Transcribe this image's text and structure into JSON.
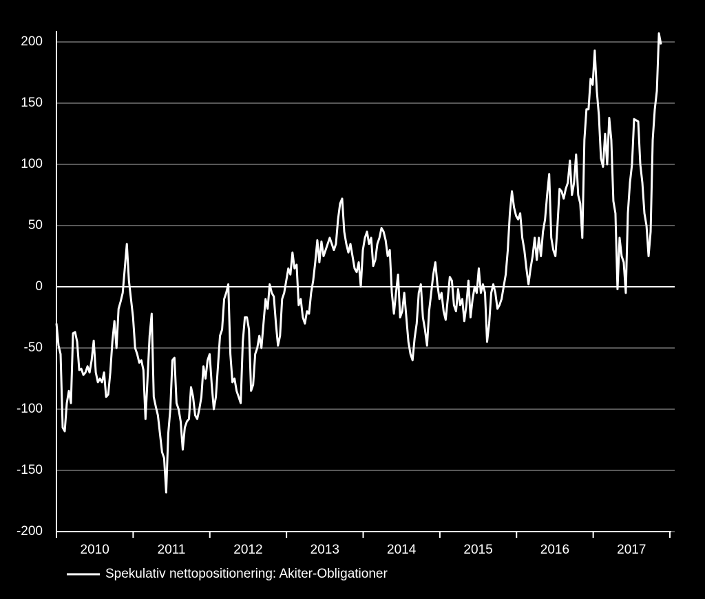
{
  "chart_data": {
    "type": "line",
    "x": [
      2010,
      2010.027,
      2010.054,
      2010.081,
      2010.108,
      2010.135,
      2010.162,
      2010.189,
      2010.216,
      2010.243,
      2010.27,
      2010.297,
      2010.324,
      2010.351,
      2010.378,
      2010.405,
      2010.432,
      2010.459,
      2010.486,
      2010.513,
      2010.54,
      2010.567,
      2010.594,
      2010.621,
      2010.648,
      2010.675,
      2010.702,
      2010.729,
      2010.756,
      2010.783,
      2010.81,
      2010.837,
      2010.864,
      2010.891,
      2010.918,
      2010.945,
      2010.972,
      2010.999,
      2011.026,
      2011.053,
      2011.08,
      2011.107,
      2011.134,
      2011.161,
      2011.188,
      2011.215,
      2011.242,
      2011.269,
      2011.296,
      2011.323,
      2011.35,
      2011.377,
      2011.404,
      2011.431,
      2011.458,
      2011.485,
      2011.512,
      2011.539,
      2011.566,
      2011.593,
      2011.62,
      2011.647,
      2011.674,
      2011.701,
      2011.728,
      2011.755,
      2011.782,
      2011.809,
      2011.836,
      2011.863,
      2011.89,
      2011.917,
      2011.944,
      2011.971,
      2011.998,
      2012.025,
      2012.052,
      2012.079,
      2012.106,
      2012.133,
      2012.16,
      2012.187,
      2012.214,
      2012.241,
      2012.268,
      2012.295,
      2012.322,
      2012.349,
      2012.376,
      2012.403,
      2012.43,
      2012.457,
      2012.484,
      2012.511,
      2012.538,
      2012.565,
      2012.592,
      2012.619,
      2012.646,
      2012.673,
      2012.7,
      2012.727,
      2012.754,
      2012.781,
      2012.808,
      2012.835,
      2012.862,
      2012.889,
      2012.916,
      2012.943,
      2012.97,
      2012.997,
      2013.024,
      2013.051,
      2013.078,
      2013.105,
      2013.132,
      2013.159,
      2013.186,
      2013.213,
      2013.24,
      2013.267,
      2013.294,
      2013.321,
      2013.348,
      2013.375,
      2013.402,
      2013.429,
      2013.456,
      2013.483,
      2013.51,
      2013.537,
      2013.564,
      2013.591,
      2013.618,
      2013.645,
      2013.672,
      2013.699,
      2013.726,
      2013.753,
      2013.78,
      2013.807,
      2013.834,
      2013.861,
      2013.888,
      2013.915,
      2013.942,
      2013.969,
      2013.996,
      2014.023,
      2014.05,
      2014.077,
      2014.104,
      2014.131,
      2014.158,
      2014.185,
      2014.212,
      2014.239,
      2014.266,
      2014.293,
      2014.32,
      2014.347,
      2014.374,
      2014.401,
      2014.428,
      2014.455,
      2014.482,
      2014.509,
      2014.536,
      2014.563,
      2014.59,
      2014.617,
      2014.644,
      2014.671,
      2014.698,
      2014.725,
      2014.752,
      2014.779,
      2014.806,
      2014.833,
      2014.86,
      2014.887,
      2014.914,
      2014.941,
      2014.968,
      2014.995,
      2015.022,
      2015.049,
      2015.076,
      2015.103,
      2015.13,
      2015.157,
      2015.184,
      2015.211,
      2015.238,
      2015.265,
      2015.292,
      2015.319,
      2015.346,
      2015.373,
      2015.4,
      2015.427,
      2015.454,
      2015.481,
      2015.508,
      2015.535,
      2015.562,
      2015.589,
      2015.616,
      2015.643,
      2015.67,
      2015.697,
      2015.724,
      2015.751,
      2015.778,
      2015.805,
      2015.832,
      2015.859,
      2015.886,
      2015.913,
      2015.94,
      2015.967,
      2015.994,
      2016.021,
      2016.048,
      2016.075,
      2016.102,
      2016.129,
      2016.156,
      2016.183,
      2016.21,
      2016.237,
      2016.264,
      2016.291,
      2016.318,
      2016.345,
      2016.372,
      2016.399,
      2016.426,
      2016.453,
      2016.48,
      2016.507,
      2016.534,
      2016.561,
      2016.588,
      2016.615,
      2016.642,
      2016.669,
      2016.696,
      2016.723,
      2016.75,
      2016.777,
      2016.804,
      2016.831,
      2016.858,
      2016.885,
      2016.912,
      2016.939,
      2016.966,
      2016.993,
      2017.02,
      2017.047,
      2017.074,
      2017.101,
      2017.128,
      2017.155,
      2017.182,
      2017.209,
      2017.236,
      2017.263,
      2017.29,
      2017.317,
      2017.344,
      2017.371,
      2017.398,
      2017.425,
      2017.452,
      2017.479,
      2017.506,
      2017.533,
      2017.56,
      2017.587,
      2017.614,
      2017.641,
      2017.668,
      2017.695,
      2017.722,
      2017.749,
      2017.776,
      2017.803,
      2017.83,
      2017.857,
      2017.884
    ],
    "series": [
      {
        "name": "Spekulativ nettopositionering: Akiter-Obligationer",
        "color": "#ffffff",
        "values": [
          -30,
          -48,
          -55,
          -115,
          -118,
          -95,
          -85,
          -95,
          -38,
          -37,
          -45,
          -68,
          -67,
          -72,
          -70,
          -65,
          -70,
          -60,
          -44,
          -70,
          -78,
          -75,
          -78,
          -70,
          -90,
          -88,
          -70,
          -45,
          -28,
          -50,
          -18,
          -12,
          -5,
          15,
          35,
          5,
          -10,
          -25,
          -50,
          -55,
          -62,
          -60,
          -68,
          -108,
          -75,
          -40,
          -22,
          -90,
          -98,
          -105,
          -120,
          -135,
          -140,
          -168,
          -120,
          -100,
          -60,
          -58,
          -95,
          -100,
          -110,
          -133,
          -115,
          -110,
          -108,
          -82,
          -90,
          -105,
          -108,
          -100,
          -90,
          -65,
          -75,
          -60,
          -55,
          -80,
          -100,
          -90,
          -65,
          -40,
          -35,
          -10,
          -5,
          2,
          -55,
          -78,
          -75,
          -85,
          -90,
          -95,
          -45,
          -25,
          -25,
          -35,
          -85,
          -80,
          -55,
          -50,
          -40,
          -50,
          -30,
          -10,
          -18,
          2,
          -5,
          -8,
          -30,
          -48,
          -40,
          -10,
          -5,
          5,
          15,
          10,
          28,
          15,
          18,
          -15,
          -10,
          -25,
          -30,
          -20,
          -22,
          -5,
          5,
          20,
          38,
          20,
          37,
          25,
          30,
          35,
          40,
          35,
          30,
          35,
          55,
          68,
          72,
          45,
          35,
          28,
          35,
          25,
          15,
          12,
          20,
          0,
          30,
          40,
          45,
          35,
          40,
          17,
          22,
          35,
          40,
          48,
          45,
          38,
          25,
          30,
          -5,
          -22,
          -5,
          10,
          -25,
          -20,
          -5,
          -25,
          -45,
          -55,
          -60,
          -42,
          -30,
          -5,
          2,
          -25,
          -35,
          -48,
          -20,
          -5,
          10,
          20,
          2,
          -10,
          -5,
          -20,
          -27,
          -10,
          8,
          5,
          -15,
          -20,
          -2,
          -15,
          -10,
          -28,
          -15,
          5,
          -25,
          -10,
          0,
          -5,
          15,
          -5,
          2,
          -5,
          -45,
          -30,
          -5,
          2,
          -5,
          -18,
          -15,
          -10,
          0,
          10,
          30,
          60,
          78,
          65,
          58,
          55,
          60,
          40,
          30,
          15,
          2,
          15,
          25,
          40,
          22,
          40,
          25,
          45,
          55,
          75,
          92,
          40,
          30,
          25,
          50,
          80,
          78,
          72,
          80,
          85,
          103,
          75,
          85,
          108,
          75,
          68,
          40,
          120,
          145,
          145,
          170,
          165,
          193,
          160,
          140,
          105,
          98,
          125,
          100,
          138,
          120,
          70,
          60,
          -2,
          40,
          25,
          20,
          -5,
          60,
          85,
          100,
          137,
          136,
          135,
          100,
          85,
          60,
          50,
          25,
          45,
          120,
          145,
          160,
          207,
          198
        ]
      }
    ],
    "xlim": [
      2010,
      2018
    ],
    "xticks": [
      2010,
      2011,
      2012,
      2013,
      2014,
      2015,
      2016,
      2017,
      2018
    ],
    "xtick_labels": [
      {
        "value": 2010.5,
        "label": "2010"
      },
      {
        "value": 2011.5,
        "label": "2011"
      },
      {
        "value": 2012.5,
        "label": "2012"
      },
      {
        "value": 2013.5,
        "label": "2013"
      },
      {
        "value": 2014.5,
        "label": "2014"
      },
      {
        "value": 2015.5,
        "label": "2015"
      },
      {
        "value": 2016.5,
        "label": "2016"
      },
      {
        "value": 2017.5,
        "label": "2017"
      }
    ],
    "ylim": [
      -200,
      200
    ],
    "yticks": [
      -200,
      -150,
      -100,
      -50,
      0,
      50,
      100,
      150,
      200
    ],
    "grid": true,
    "legend": "bottom-left"
  }
}
